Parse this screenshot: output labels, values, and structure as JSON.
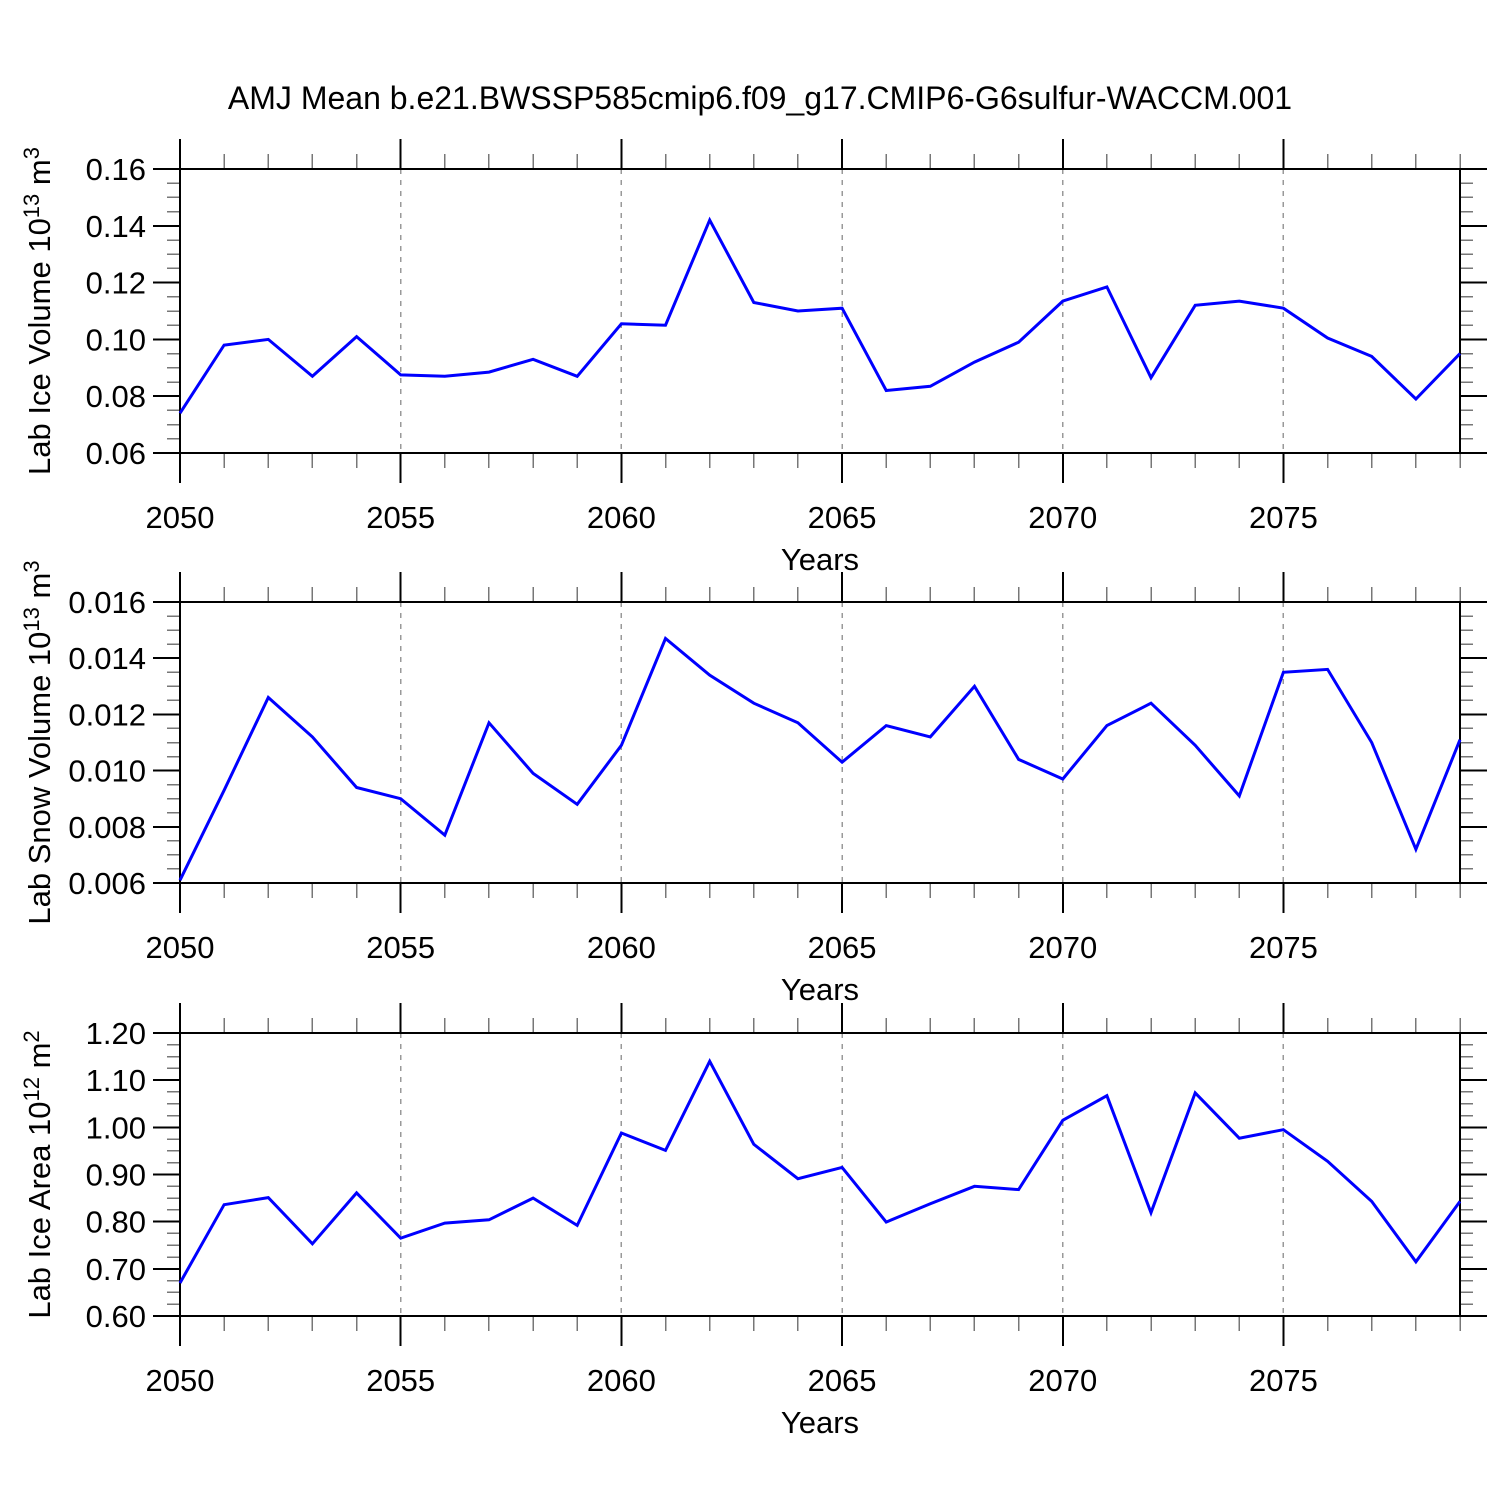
{
  "title": "AMJ Mean b.e21.BWSSP585cmip6.f09_g17.CMIP6-G6sulfur-WACCM.001",
  "line_color": "#0000ff",
  "background": "#ffffff",
  "axis_color": "#000000",
  "grid_color": "#999999",
  "minor_tick_color": "#777777",
  "chart_data": [
    {
      "type": "line",
      "title": "",
      "ylabel": "Lab Ice Volume 10^13 m^3",
      "ylabel_segments": [
        {
          "t": "Lab Ice Volume 10"
        },
        {
          "s": "13"
        },
        {
          "t": " m"
        },
        {
          "s": "3"
        }
      ],
      "xlabel": "Years",
      "x": [
        2050,
        2051,
        2052,
        2053,
        2054,
        2055,
        2056,
        2057,
        2058,
        2059,
        2060,
        2061,
        2062,
        2063,
        2064,
        2065,
        2066,
        2067,
        2068,
        2069,
        2070,
        2071,
        2072,
        2073,
        2074,
        2075,
        2076,
        2077,
        2078,
        2079
      ],
      "values": [
        0.074,
        0.098,
        0.1,
        0.087,
        0.101,
        0.0875,
        0.087,
        0.0885,
        0.093,
        0.087,
        0.1055,
        0.105,
        0.142,
        0.113,
        0.11,
        0.111,
        0.082,
        0.0835,
        0.092,
        0.099,
        0.1135,
        0.1185,
        0.0865,
        0.112,
        0.1135,
        0.111,
        0.1005,
        0.094,
        0.079,
        0.095
      ],
      "xlim": [
        2050,
        2079
      ],
      "ylim": [
        0.06,
        0.16
      ],
      "xticks": [
        2050,
        2055,
        2060,
        2065,
        2070,
        2075
      ],
      "x_minor_step": 1,
      "yticks": [
        {
          "v": 0.06,
          "label": "0.06"
        },
        {
          "v": 0.08,
          "label": "0.08"
        },
        {
          "v": 0.1,
          "label": "0.10"
        },
        {
          "v": 0.12,
          "label": "0.12"
        },
        {
          "v": 0.14,
          "label": "0.14"
        },
        {
          "v": 0.16,
          "label": "0.16"
        }
      ],
      "y_minor_step": 0.005,
      "grid": "dashed vertical lines at major x ticks",
      "legend": null
    },
    {
      "type": "line",
      "title": "",
      "ylabel": "Lab Snow Volume 10^13 m^3",
      "ylabel_segments": [
        {
          "t": "Lab Snow Volume 10"
        },
        {
          "s": "13"
        },
        {
          "t": " m"
        },
        {
          "s": "3"
        }
      ],
      "xlabel": "Years",
      "x": [
        2050,
        2051,
        2052,
        2053,
        2054,
        2055,
        2056,
        2057,
        2058,
        2059,
        2060,
        2061,
        2062,
        2063,
        2064,
        2065,
        2066,
        2067,
        2068,
        2069,
        2070,
        2071,
        2072,
        2073,
        2074,
        2075,
        2076,
        2077,
        2078,
        2079
      ],
      "values": [
        0.0061,
        0.0093,
        0.0126,
        0.0112,
        0.0094,
        0.009,
        0.0077,
        0.0117,
        0.0099,
        0.0088,
        0.0109,
        0.0147,
        0.0134,
        0.0124,
        0.0117,
        0.0103,
        0.0116,
        0.0112,
        0.013,
        0.0104,
        0.0097,
        0.0116,
        0.0124,
        0.0109,
        0.0091,
        0.0135,
        0.0136,
        0.011,
        0.0072,
        0.0111
      ],
      "xlim": [
        2050,
        2079
      ],
      "ylim": [
        0.006,
        0.016
      ],
      "xticks": [
        2050,
        2055,
        2060,
        2065,
        2070,
        2075
      ],
      "x_minor_step": 1,
      "yticks": [
        {
          "v": 0.006,
          "label": "0.006"
        },
        {
          "v": 0.008,
          "label": "0.008"
        },
        {
          "v": 0.01,
          "label": "0.010"
        },
        {
          "v": 0.012,
          "label": "0.012"
        },
        {
          "v": 0.014,
          "label": "0.014"
        },
        {
          "v": 0.016,
          "label": "0.016"
        }
      ],
      "y_minor_step": 0.0005,
      "grid": "dashed vertical lines at major x ticks",
      "legend": null
    },
    {
      "type": "line",
      "title": "",
      "ylabel": "Lab Ice Area 10^12 m^2",
      "ylabel_segments": [
        {
          "t": "Lab Ice Area 10"
        },
        {
          "s": "12"
        },
        {
          "t": " m"
        },
        {
          "s": "2"
        }
      ],
      "xlabel": "Years",
      "x": [
        2050,
        2051,
        2052,
        2053,
        2054,
        2055,
        2056,
        2057,
        2058,
        2059,
        2060,
        2061,
        2062,
        2063,
        2064,
        2065,
        2066,
        2067,
        2068,
        2069,
        2070,
        2071,
        2072,
        2073,
        2074,
        2075,
        2076,
        2077,
        2078,
        2079
      ],
      "values": [
        0.67,
        0.836,
        0.851,
        0.753,
        0.861,
        0.765,
        0.797,
        0.804,
        0.85,
        0.792,
        0.988,
        0.951,
        1.14,
        0.964,
        0.891,
        0.915,
        0.799,
        0.838,
        0.875,
        0.868,
        1.015,
        1.067,
        0.819,
        1.073,
        0.977,
        0.995,
        0.928,
        0.843,
        0.715,
        0.843
      ],
      "xlim": [
        2050,
        2079
      ],
      "ylim": [
        0.6,
        1.2
      ],
      "xticks": [
        2050,
        2055,
        2060,
        2065,
        2070,
        2075
      ],
      "x_minor_step": 1,
      "yticks": [
        {
          "v": 0.6,
          "label": "0.60"
        },
        {
          "v": 0.7,
          "label": "0.70"
        },
        {
          "v": 0.8,
          "label": "0.80"
        },
        {
          "v": 0.9,
          "label": "0.90"
        },
        {
          "v": 1.0,
          "label": "1.00"
        },
        {
          "v": 1.1,
          "label": "1.10"
        },
        {
          "v": 1.2,
          "label": "1.20"
        }
      ],
      "y_minor_step": 0.025,
      "grid": "dashed vertical lines at major x ticks",
      "legend": null
    }
  ]
}
